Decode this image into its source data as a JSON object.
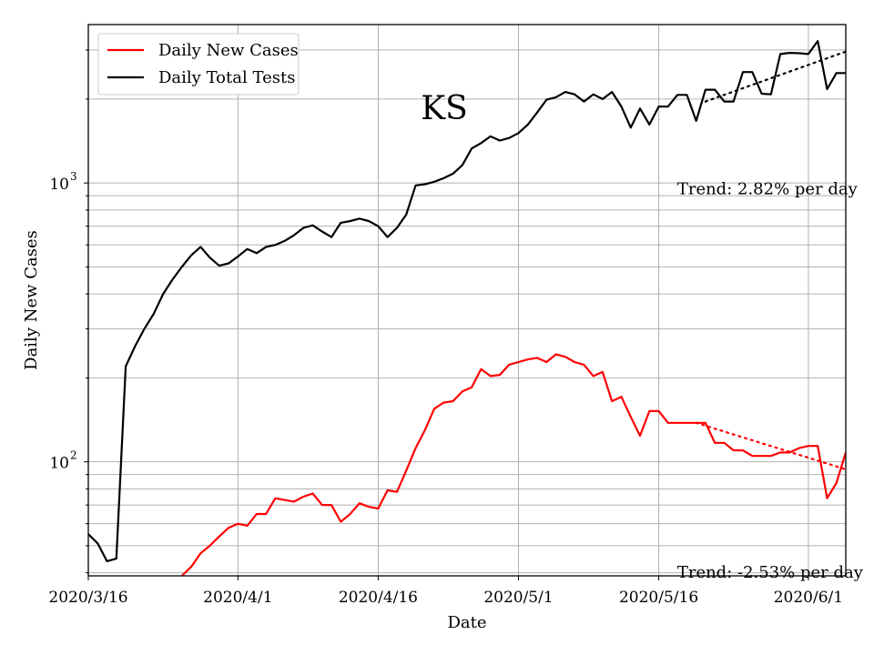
{
  "chart_data": {
    "type": "line",
    "title": "KS",
    "xlabel": "Date",
    "ylabel": "Daily New Cases",
    "yscale": "log",
    "ylim": [
      39,
      3700
    ],
    "xlim": [
      "2020-03-16",
      "2020-06-05"
    ],
    "grid": true,
    "legend_position": "top-left",
    "x_ticks": [
      {
        "date": "2020-03-16",
        "label": "2020/3/16"
      },
      {
        "date": "2020-04-01",
        "label": "2020/4/1"
      },
      {
        "date": "2020-04-16",
        "label": "2020/4/16"
      },
      {
        "date": "2020-05-01",
        "label": "2020/5/1"
      },
      {
        "date": "2020-05-16",
        "label": "2020/5/16"
      },
      {
        "date": "2020-06-01",
        "label": "2020/6/1"
      }
    ],
    "y_ticks": [
      {
        "value": 100,
        "base": "10",
        "exp": "2"
      },
      {
        "value": 1000,
        "base": "10",
        "exp": "3"
      }
    ],
    "series": [
      {
        "name": "Daily New Cases",
        "color": "#ff0000",
        "x": [
          "2020-03-26",
          "2020-03-27",
          "2020-03-28",
          "2020-03-29",
          "2020-03-30",
          "2020-03-31",
          "2020-04-01",
          "2020-04-02",
          "2020-04-03",
          "2020-04-04",
          "2020-04-05",
          "2020-04-06",
          "2020-04-07",
          "2020-04-08",
          "2020-04-09",
          "2020-04-10",
          "2020-04-11",
          "2020-04-12",
          "2020-04-13",
          "2020-04-14",
          "2020-04-15",
          "2020-04-16",
          "2020-04-17",
          "2020-04-18",
          "2020-04-19",
          "2020-04-20",
          "2020-04-21",
          "2020-04-22",
          "2020-04-23",
          "2020-04-24",
          "2020-04-25",
          "2020-04-26",
          "2020-04-27",
          "2020-04-28",
          "2020-04-29",
          "2020-04-30",
          "2020-05-01",
          "2020-05-02",
          "2020-05-03",
          "2020-05-04",
          "2020-05-05",
          "2020-05-06",
          "2020-05-07",
          "2020-05-08",
          "2020-05-09",
          "2020-05-10",
          "2020-05-11",
          "2020-05-12",
          "2020-05-13",
          "2020-05-14",
          "2020-05-15",
          "2020-05-16",
          "2020-05-17",
          "2020-05-18",
          "2020-05-19",
          "2020-05-20",
          "2020-05-21",
          "2020-05-22",
          "2020-05-23",
          "2020-05-24",
          "2020-05-25",
          "2020-05-26",
          "2020-05-27",
          "2020-05-28",
          "2020-05-29",
          "2020-05-30",
          "2020-05-31",
          "2020-06-01",
          "2020-06-02",
          "2020-06-03",
          "2020-06-04",
          "2020-06-05"
        ],
        "values": [
          39,
          42,
          47,
          50,
          54,
          58,
          60,
          59,
          65,
          65,
          74,
          73,
          72,
          75,
          77,
          70,
          70,
          61,
          65,
          71,
          69,
          68,
          79,
          78,
          93,
          112,
          130,
          155,
          163,
          165,
          179,
          185,
          215,
          203,
          205,
          223,
          228,
          233,
          236,
          228,
          243,
          238,
          228,
          223,
          203,
          210,
          165,
          171,
          145,
          124,
          152,
          152,
          138,
          138,
          138,
          138,
          138,
          117,
          117,
          110,
          110,
          105,
          105,
          105,
          108,
          108,
          112,
          114,
          114,
          74,
          84,
          108
        ]
      },
      {
        "name": "Daily Total Tests",
        "color": "#000000",
        "x": [
          "2020-03-16",
          "2020-03-17",
          "2020-03-18",
          "2020-03-19",
          "2020-03-20",
          "2020-03-21",
          "2020-03-22",
          "2020-03-23",
          "2020-03-24",
          "2020-03-25",
          "2020-03-26",
          "2020-03-27",
          "2020-03-28",
          "2020-03-29",
          "2020-03-30",
          "2020-03-31",
          "2020-04-01",
          "2020-04-02",
          "2020-04-03",
          "2020-04-04",
          "2020-04-05",
          "2020-04-06",
          "2020-04-07",
          "2020-04-08",
          "2020-04-09",
          "2020-04-10",
          "2020-04-11",
          "2020-04-12",
          "2020-04-13",
          "2020-04-14",
          "2020-04-15",
          "2020-04-16",
          "2020-04-17",
          "2020-04-18",
          "2020-04-19",
          "2020-04-20",
          "2020-04-21",
          "2020-04-22",
          "2020-04-23",
          "2020-04-24",
          "2020-04-25",
          "2020-04-26",
          "2020-04-27",
          "2020-04-28",
          "2020-04-29",
          "2020-04-30",
          "2020-05-01",
          "2020-05-02",
          "2020-05-03",
          "2020-05-04",
          "2020-05-05",
          "2020-05-06",
          "2020-05-07",
          "2020-05-08",
          "2020-05-09",
          "2020-05-10",
          "2020-05-11",
          "2020-05-12",
          "2020-05-13",
          "2020-05-14",
          "2020-05-15",
          "2020-05-16",
          "2020-05-17",
          "2020-05-18",
          "2020-05-19",
          "2020-05-20",
          "2020-05-21",
          "2020-05-22",
          "2020-05-23",
          "2020-05-24",
          "2020-05-25",
          "2020-05-26",
          "2020-05-27",
          "2020-05-28",
          "2020-05-29",
          "2020-05-30",
          "2020-05-31",
          "2020-06-01",
          "2020-06-02",
          "2020-06-03",
          "2020-06-04",
          "2020-06-05"
        ],
        "values": [
          55,
          51,
          44,
          45,
          220,
          260,
          300,
          340,
          400,
          450,
          500,
          550,
          590,
          540,
          505,
          515,
          545,
          580,
          560,
          590,
          600,
          620,
          650,
          690,
          705,
          670,
          640,
          720,
          730,
          745,
          730,
          700,
          640,
          690,
          770,
          980,
          990,
          1010,
          1040,
          1080,
          1160,
          1330,
          1390,
          1470,
          1420,
          1450,
          1510,
          1620,
          1790,
          1990,
          2030,
          2120,
          2080,
          1960,
          2080,
          2000,
          2120,
          1880,
          1580,
          1850,
          1620,
          1880,
          1880,
          2070,
          2070,
          1670,
          2160,
          2160,
          1960,
          1960,
          2500,
          2500,
          2090,
          2080,
          2900,
          2930,
          2920,
          2900,
          3230,
          2170,
          2480,
          2480
        ]
      }
    ],
    "trend_lines": [
      {
        "series": "Daily Total Tests",
        "color": "#000000",
        "x": [
          "2020-05-21",
          "2020-06-05"
        ],
        "values": [
          1960,
          2960
        ]
      },
      {
        "series": "Daily New Cases",
        "color": "#ff0000",
        "x": [
          "2020-05-20",
          "2020-06-05"
        ],
        "values": [
          138,
          94
        ]
      }
    ],
    "annotations": [
      {
        "text": "Trend: 2.82% per day",
        "date": "2020-05-17",
        "value": 960
      },
      {
        "text": "Trend: -2.53% per day",
        "date": "2020-05-17",
        "value": 40.5
      }
    ]
  }
}
